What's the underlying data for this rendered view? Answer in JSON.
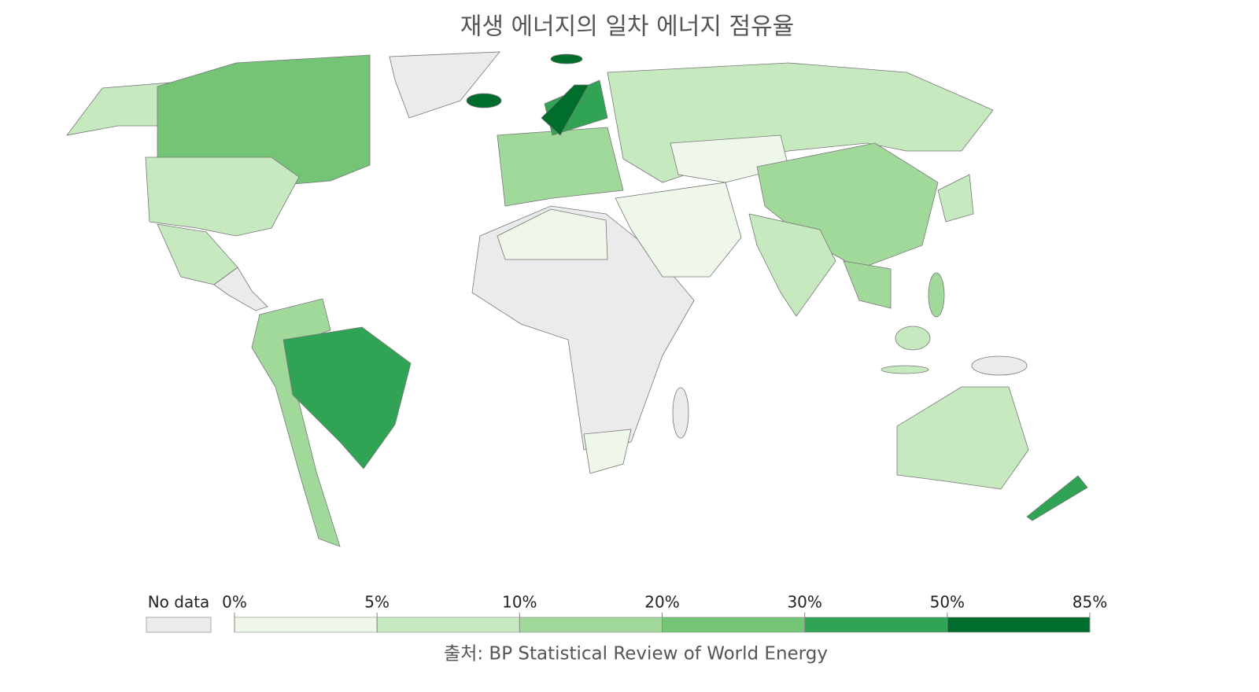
{
  "title": "재생 에너지의 일차 에너지 점유율",
  "legend": {
    "no_data": "No data",
    "no_data_color": "#ebebeb",
    "ticks": [
      {
        "value": 0,
        "label": "0%"
      },
      {
        "value": 5,
        "label": "5%"
      },
      {
        "value": 10,
        "label": "10%"
      },
      {
        "value": 20,
        "label": "20%"
      },
      {
        "value": 30,
        "label": "30%"
      },
      {
        "value": 50,
        "label": "50%"
      },
      {
        "value": 85,
        "label": "85%"
      }
    ],
    "colors": [
      "#eef7ea",
      "#c7e9c0",
      "#a1d99b",
      "#74c476",
      "#31a354",
      "#006d2c"
    ]
  },
  "source": "출처: BP Statistical Review of World Energy"
}
